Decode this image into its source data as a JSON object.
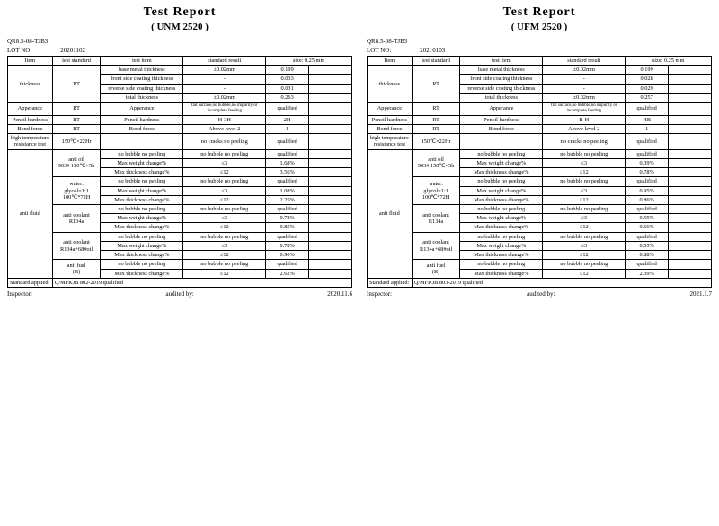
{
  "pages": [
    {
      "title": "Test Report",
      "subtitle": "( UNM 2520 )",
      "doc_no": "QR8.5-08-TJB3",
      "lot_label": "LOT NO:",
      "lot_no": "20201102",
      "size_header": "size: 0.25 mm",
      "standard_applied_label": "Standard applied:",
      "standard_applied": "Q/MFKJB 802-2019  qualified",
      "footer": {
        "inspector": "Inspector:",
        "audited": "audited by:",
        "date": "2020.11.6"
      },
      "headers": {
        "item": "Item",
        "std": "test standard",
        "titem": "test item",
        "sres": "standard result"
      },
      "thickness": {
        "item": "thickness",
        "std": "RT",
        "rows": [
          {
            "titem": "base metal thickness",
            "sres": "±0.02mm",
            "v": "0.199"
          },
          {
            "titem": "front side coating thickness",
            "sres": "-",
            "v": "0.033"
          },
          {
            "titem": "reverse side coating thickness",
            "sres": "-",
            "v": "0.031"
          },
          {
            "titem": "total thickness",
            "sres": "±0.02mm",
            "v": "0.263"
          }
        ]
      },
      "appearance": {
        "item": "Apperance",
        "std": "RT",
        "titem": "Apperance",
        "sres": "flat surface,no bubble,no impurity or incomplete feeding",
        "v": "qualified"
      },
      "pencil": {
        "item": "Pencil hardness",
        "std": "RT",
        "titem": "Pencil hardness",
        "sres": "H-3H",
        "v": "2H"
      },
      "bond": {
        "item": "Bond force",
        "std": "RT",
        "titem": "Bond force",
        "sres": "Above level 2",
        "v": "1"
      },
      "hitemp": {
        "item": "high temperature resistance test",
        "std": "150℃×22Hr",
        "titem": "",
        "sres": "no cracks  no peeling",
        "v": "qualified"
      },
      "antifluid": {
        "item": "anti fluid",
        "groups": [
          {
            "std": "anti oil\n903# 150℃×5h",
            "rows": [
              {
                "titem": "no bubble  no peeling",
                "sres": "no bubble  no peeling",
                "v": "qualified"
              },
              {
                "titem": "Max weight change%",
                "sres": "≤3",
                "v": "1.68%"
              },
              {
                "titem": "Max thickness change%",
                "sres": "≤12",
                "v": "3.56%"
              }
            ]
          },
          {
            "std": "water:\nglycol=1:1\n100℃*72H",
            "rows": [
              {
                "titem": "no bubble  no peeling",
                "sres": "no bubble  no peeling",
                "v": "qualified"
              },
              {
                "titem": "Max weight change%",
                "sres": "≤3",
                "v": "1.08%"
              },
              {
                "titem": "Max thickness change%",
                "sres": "≤12",
                "v": "2.25%"
              }
            ]
          },
          {
            "std": "anti coolant\nR134a",
            "rows": [
              {
                "titem": "no bubble  no peeling",
                "sres": "no bubble  no peeling",
                "v": "qualified"
              },
              {
                "titem": "Max weight change%",
                "sres": "≤3",
                "v": "0.72%"
              },
              {
                "titem": "Max thickness change%",
                "sres": "≤12",
                "v": "0.85%"
              }
            ]
          },
          {
            "std": "anti coolant\nR134a+68#oil",
            "rows": [
              {
                "titem": "no bubble  no peeling",
                "sres": "no bubble  no peeling",
                "v": "qualified"
              },
              {
                "titem": "Max weight change%",
                "sres": "≤3",
                "v": "0.78%"
              },
              {
                "titem": "Max thickness change%",
                "sres": "≤12",
                "v": "0.90%"
              }
            ]
          },
          {
            "std": "anti fuel\n(B)",
            "rows": [
              {
                "titem": "no bubble  no peeling",
                "sres": "no bubble  no peeling",
                "v": "qualified"
              },
              {
                "titem": "Max thickness change%",
                "sres": "≤12",
                "v": "2.62%"
              }
            ]
          }
        ]
      }
    },
    {
      "title": "Test Report",
      "subtitle": "( UFM 2520 )",
      "doc_no": "QR8.5-08-TJB3",
      "lot_label": "LOT NO:",
      "lot_no": "20210103",
      "size_header": "size: 0.25 mm",
      "standard_applied_label": "Standard applied:",
      "standard_applied": "Q/MFKJB 803-2019  qualified",
      "footer": {
        "inspector": "Inspector:",
        "audited": "audited by:",
        "date": "2021.1.7"
      },
      "headers": {
        "item": "Item",
        "std": "test standard",
        "titem": "test item",
        "sres": "standard result"
      },
      "thickness": {
        "item": "thickness",
        "std": "RT",
        "rows": [
          {
            "titem": "base metal thickness",
            "sres": "±0.02mm",
            "v": "0.199"
          },
          {
            "titem": "front side coating thickness",
            "sres": "-",
            "v": "0.028"
          },
          {
            "titem": "reverse side coating thickness",
            "sres": "-",
            "v": "0.029"
          },
          {
            "titem": "total thickness",
            "sres": "±0.02mm",
            "v": "0.257"
          }
        ]
      },
      "appearance": {
        "item": "Apperance",
        "std": "RT",
        "titem": "Apperance",
        "sres": "flat surface,no bubble,no impurity or incomplete feeding",
        "v": "qualified"
      },
      "pencil": {
        "item": "Pencil hardness",
        "std": "RT",
        "titem": "Pencil hardness",
        "sres": "B-H",
        "v": "HB"
      },
      "bond": {
        "item": "Bond force",
        "std": "RT",
        "titem": "Bond force",
        "sres": "Above level 2",
        "v": "1"
      },
      "hitemp": {
        "item": "high temperature resistance test",
        "std": "150℃×22Hr",
        "titem": "",
        "sres": "no cracks  no peeling",
        "v": "qualified"
      },
      "antifluid": {
        "item": "anti fluid",
        "groups": [
          {
            "std": "anti oil\n903# 150℃×5h",
            "rows": [
              {
                "titem": "no bubble  no peeling",
                "sres": "no bubble  no peeling",
                "v": "qualified"
              },
              {
                "titem": "Max weight change%",
                "sres": "≤3",
                "v": "0.39%"
              },
              {
                "titem": "Max thickness change%",
                "sres": "≤12",
                "v": "0.78%"
              }
            ]
          },
          {
            "std": "water:\nglycol=1:1\n100℃*72H",
            "rows": [
              {
                "titem": "no bubble  no peeling",
                "sres": "no bubble  no peeling",
                "v": "qualified"
              },
              {
                "titem": "Max weight change%",
                "sres": "≤3",
                "v": "0.95%"
              },
              {
                "titem": "Max thickness change%",
                "sres": "≤12",
                "v": "0.86%"
              }
            ]
          },
          {
            "std": "anti coolant\nR134a",
            "rows": [
              {
                "titem": "no bubble  no peeling",
                "sres": "no bubble  no peeling",
                "v": "qualified"
              },
              {
                "titem": "Max weight change%",
                "sres": "≤3",
                "v": "0.55%"
              },
              {
                "titem": "Max thickness change%",
                "sres": "≤12",
                "v": "0.66%"
              }
            ]
          },
          {
            "std": "anti coolant\nR134a+68#oil",
            "rows": [
              {
                "titem": "no bubble  no peeling",
                "sres": "no bubble  no peeling",
                "v": "qualified"
              },
              {
                "titem": "Max weight change%",
                "sres": "≤3",
                "v": "0.55%"
              },
              {
                "titem": "Max thickness change%",
                "sres": "≤12",
                "v": "0.88%"
              }
            ]
          },
          {
            "std": "anti fuel\n(B)",
            "rows": [
              {
                "titem": "no bubble  no peeling",
                "sres": "no bubble  no peeling",
                "v": "qualified"
              },
              {
                "titem": "Max thickness change%",
                "sres": "≤12",
                "v": "2.39%"
              }
            ]
          }
        ]
      }
    }
  ]
}
